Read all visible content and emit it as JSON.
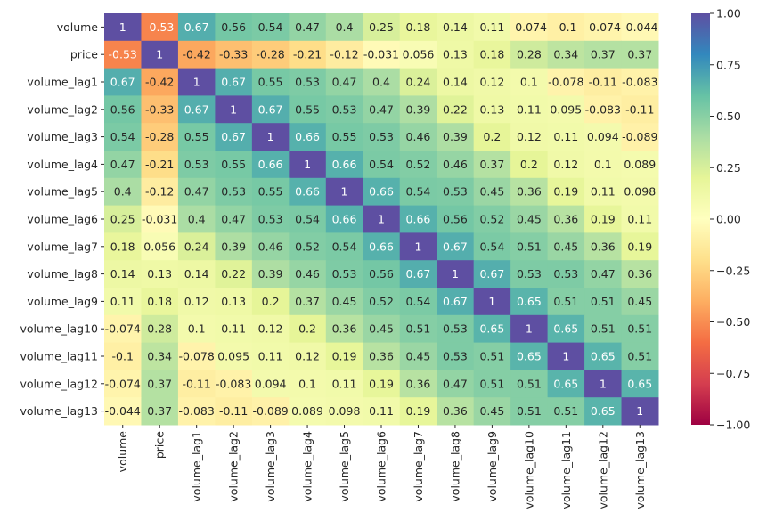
{
  "chart_data": {
    "type": "heatmap",
    "x_categories": [
      "volume",
      "price",
      "volume_lag1",
      "volume_lag2",
      "volume_lag3",
      "volume_lag4",
      "volume_lag5",
      "volume_lag6",
      "volume_lag7",
      "volume_lag8",
      "volume_lag9",
      "volume_lag10",
      "volume_lag11",
      "volume_lag12",
      "volume_lag13"
    ],
    "y_categories": [
      "volume",
      "price",
      "volume_lag1",
      "volume_lag2",
      "volume_lag3",
      "volume_lag4",
      "volume_lag5",
      "volume_lag6",
      "volume_lag7",
      "volume_lag8",
      "volume_lag9",
      "volume_lag10",
      "volume_lag11",
      "volume_lag12",
      "volume_lag13"
    ],
    "values": [
      [
        1,
        -0.53,
        0.67,
        0.56,
        0.54,
        0.47,
        0.4,
        0.25,
        0.18,
        0.14,
        0.11,
        -0.074,
        -0.1,
        -0.074,
        -0.044
      ],
      [
        -0.53,
        1,
        -0.42,
        -0.33,
        -0.28,
        -0.21,
        -0.12,
        -0.031,
        0.056,
        0.13,
        0.18,
        0.28,
        0.34,
        0.37,
        0.37
      ],
      [
        0.67,
        -0.42,
        1,
        0.67,
        0.55,
        0.53,
        0.47,
        0.4,
        0.24,
        0.14,
        0.12,
        0.1,
        -0.078,
        -0.11,
        -0.083
      ],
      [
        0.56,
        -0.33,
        0.67,
        1,
        0.67,
        0.55,
        0.53,
        0.47,
        0.39,
        0.22,
        0.13,
        0.11,
        0.095,
        -0.083,
        -0.11
      ],
      [
        0.54,
        -0.28,
        0.55,
        0.67,
        1,
        0.66,
        0.55,
        0.53,
        0.46,
        0.39,
        0.2,
        0.12,
        0.11,
        0.094,
        -0.089
      ],
      [
        0.47,
        -0.21,
        0.53,
        0.55,
        0.66,
        1,
        0.66,
        0.54,
        0.52,
        0.46,
        0.37,
        0.2,
        0.12,
        0.1,
        0.089
      ],
      [
        0.4,
        -0.12,
        0.47,
        0.53,
        0.55,
        0.66,
        1,
        0.66,
        0.54,
        0.53,
        0.45,
        0.36,
        0.19,
        0.11,
        0.098
      ],
      [
        0.25,
        -0.031,
        0.4,
        0.47,
        0.53,
        0.54,
        0.66,
        1,
        0.66,
        0.56,
        0.52,
        0.45,
        0.36,
        0.19,
        0.11
      ],
      [
        0.18,
        0.056,
        0.24,
        0.39,
        0.46,
        0.52,
        0.54,
        0.66,
        1,
        0.67,
        0.54,
        0.51,
        0.45,
        0.36,
        0.19
      ],
      [
        0.14,
        0.13,
        0.14,
        0.22,
        0.39,
        0.46,
        0.53,
        0.56,
        0.67,
        1,
        0.67,
        0.53,
        0.53,
        0.47,
        0.36
      ],
      [
        0.11,
        0.18,
        0.12,
        0.13,
        0.2,
        0.37,
        0.45,
        0.52,
        0.54,
        0.67,
        1,
        0.65,
        0.51,
        0.51,
        0.45
      ],
      [
        -0.074,
        0.28,
        0.1,
        0.11,
        0.12,
        0.2,
        0.36,
        0.45,
        0.51,
        0.53,
        0.65,
        1,
        0.65,
        0.51,
        0.51
      ],
      [
        -0.1,
        0.34,
        -0.078,
        0.095,
        0.11,
        0.12,
        0.19,
        0.36,
        0.45,
        0.53,
        0.51,
        0.65,
        1,
        0.65,
        0.51
      ],
      [
        -0.074,
        0.37,
        -0.11,
        -0.083,
        0.094,
        0.1,
        0.11,
        0.19,
        0.36,
        0.47,
        0.51,
        0.51,
        0.65,
        1,
        0.65
      ],
      [
        -0.044,
        0.37,
        -0.083,
        -0.11,
        -0.089,
        0.089,
        0.098,
        0.11,
        0.19,
        0.36,
        0.45,
        0.51,
        0.51,
        0.65,
        1
      ]
    ],
    "zlim": [
      -1,
      1
    ],
    "zticks": [
      {
        "value": 1,
        "label": "1.00"
      },
      {
        "value": 0.75,
        "label": "0.75"
      },
      {
        "value": 0.5,
        "label": "0.50"
      },
      {
        "value": 0.25,
        "label": "0.25"
      },
      {
        "value": 0,
        "label": "0.00"
      },
      {
        "value": -0.25,
        "label": "−0.25"
      },
      {
        "value": -0.5,
        "label": "−0.50"
      },
      {
        "value": -0.75,
        "label": "−0.75"
      },
      {
        "value": -1,
        "label": "−1.00"
      }
    ],
    "colorscale": [
      "#9e0142",
      "#d53e4f",
      "#f46d43",
      "#fdae61",
      "#fee08b",
      "#ffffbf",
      "#e6f598",
      "#abdda4",
      "#66c2a5",
      "#3288bd",
      "#5e4fa2"
    ]
  }
}
